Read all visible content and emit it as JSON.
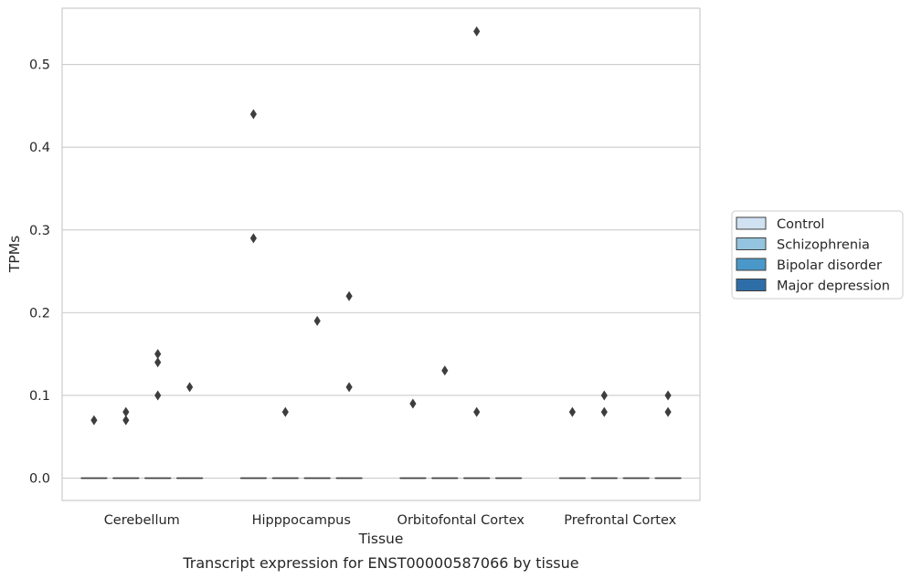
{
  "chart_data": {
    "type": "box",
    "xlabel": "Tissue",
    "ylabel": "TPMs",
    "caption": "Transcript expression for ENST00000587066 by tissue",
    "categories": [
      "Cerebellum",
      "Hipppocampus",
      "Orbitofontal Cortex",
      "Prefrontal Cortex"
    ],
    "ylim": [
      -0.027,
      0.568
    ],
    "yticks": [
      0.0,
      0.1,
      0.2,
      0.3,
      0.4,
      0.5
    ],
    "ytick_labels": [
      "0.0",
      "0.1",
      "0.2",
      "0.3",
      "0.4",
      "0.5"
    ],
    "grid": "horizontal",
    "legend_position": "right",
    "series": [
      {
        "name": "Control",
        "color": "#d0e1f2",
        "boxes": [
          {
            "q1": 0,
            "median": 0,
            "q3": 0
          },
          {
            "q1": 0,
            "median": 0,
            "q3": 0
          },
          {
            "q1": 0,
            "median": 0,
            "q3": 0
          },
          {
            "q1": 0,
            "median": 0,
            "q3": 0
          }
        ],
        "outliers": [
          [
            0.07
          ],
          [
            0.44,
            0.29
          ],
          [
            0.09
          ],
          [
            0.08
          ]
        ]
      },
      {
        "name": "Schizophrenia",
        "color": "#94c4df",
        "boxes": [
          {
            "q1": 0,
            "median": 0,
            "q3": 0
          },
          {
            "q1": 0,
            "median": 0,
            "q3": 0
          },
          {
            "q1": 0,
            "median": 0,
            "q3": 0
          },
          {
            "q1": 0,
            "median": 0,
            "q3": 0
          }
        ],
        "outliers": [
          [
            0.08,
            0.07
          ],
          [
            0.08
          ],
          [
            0.13
          ],
          [
            0.1,
            0.08
          ]
        ]
      },
      {
        "name": "Bipolar disorder",
        "color": "#4a98c9",
        "boxes": [
          {
            "q1": 0,
            "median": 0,
            "q3": 0
          },
          {
            "q1": 0,
            "median": 0,
            "q3": 0
          },
          {
            "q1": 0,
            "median": 0,
            "q3": 0
          },
          {
            "q1": 0,
            "median": 0,
            "q3": 0
          }
        ],
        "outliers": [
          [
            0.15,
            0.14,
            0.1
          ],
          [
            0.19
          ],
          [
            0.54,
            0.08
          ],
          []
        ]
      },
      {
        "name": "Major depression",
        "color": "#2e6ea8",
        "boxes": [
          {
            "q1": 0,
            "median": 0,
            "q3": 0
          },
          {
            "q1": 0,
            "median": 0,
            "q3": 0
          },
          {
            "q1": 0,
            "median": 0,
            "q3": 0
          },
          {
            "q1": 0,
            "median": 0,
            "q3": 0
          }
        ],
        "outliers": [
          [
            0.11
          ],
          [
            0.22,
            0.11
          ],
          [],
          [
            0.1,
            0.08
          ]
        ]
      }
    ]
  }
}
